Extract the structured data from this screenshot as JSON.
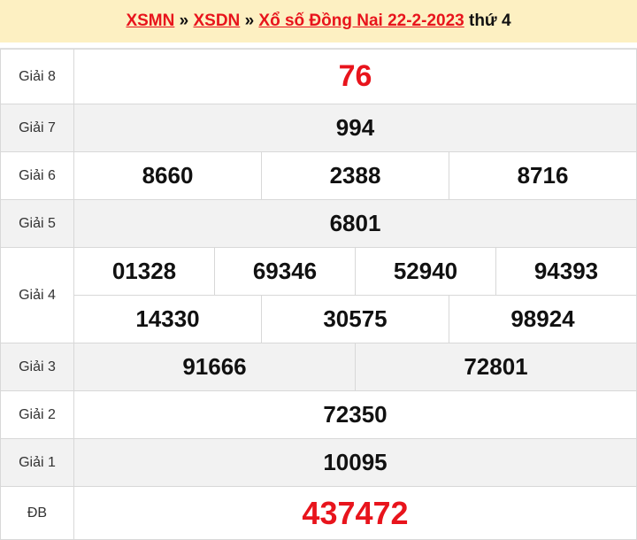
{
  "header": {
    "link1": "XSMN",
    "sep": "»",
    "link2": "XSDN",
    "link3": "Xổ số Đồng Nai 22-2-2023",
    "suffix": "thứ 4"
  },
  "accent": "#e8141c",
  "rows": [
    {
      "label": "Giải 8",
      "values": [
        "76"
      ]
    },
    {
      "label": "Giải 7",
      "values": [
        "994"
      ]
    },
    {
      "label": "Giải 6",
      "values": [
        "8660",
        "2388",
        "8716"
      ]
    },
    {
      "label": "Giải 5",
      "values": [
        "6801"
      ]
    },
    {
      "label": "Giải 4",
      "values": [
        "01328",
        "69346",
        "52940",
        "94393"
      ],
      "values2": [
        "14330",
        "30575",
        "98924"
      ]
    },
    {
      "label": "Giải 3",
      "values": [
        "91666",
        "72801"
      ]
    },
    {
      "label": "Giải 2",
      "values": [
        "72350"
      ]
    },
    {
      "label": "Giải 1",
      "values": [
        "10095"
      ]
    },
    {
      "label": "ĐB",
      "values": [
        "437472"
      ]
    }
  ]
}
